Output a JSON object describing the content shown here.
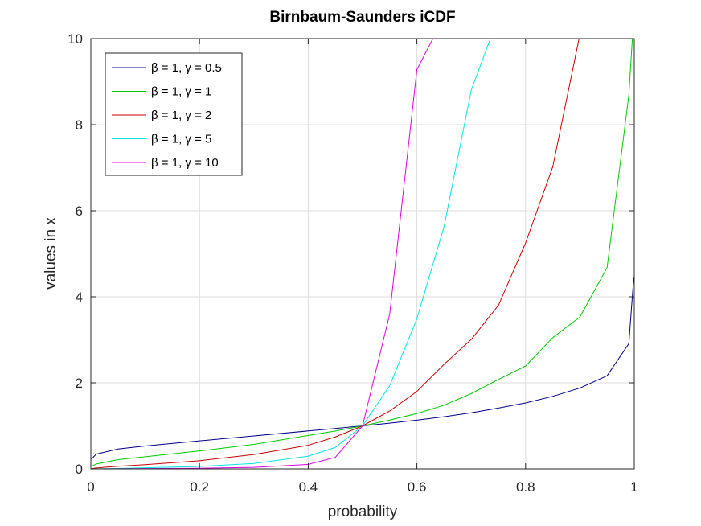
{
  "chart_data": {
    "type": "line",
    "title": "Birnbaum-Saunders iCDF",
    "xlabel": "probability",
    "ylabel": "values in x",
    "xlim": [
      0,
      1
    ],
    "ylim": [
      0,
      10
    ],
    "xticks": [
      0,
      0.2,
      0.4,
      0.6,
      0.8,
      1
    ],
    "yticks": [
      0,
      2,
      4,
      6,
      8,
      10
    ],
    "xtick_labels": [
      "0",
      "0.2",
      "0.4",
      "0.6",
      "0.8",
      "1"
    ],
    "ytick_labels": [
      "0",
      "2",
      "4",
      "6",
      "8",
      "10"
    ],
    "grid": true,
    "legend_position": "top-left",
    "x": [
      0.001,
      0.01,
      0.05,
      0.1,
      0.2,
      0.3,
      0.4,
      0.45,
      0.5,
      0.55,
      0.6,
      0.65,
      0.7,
      0.75,
      0.8,
      0.85,
      0.9,
      0.95,
      0.99,
      0.999
    ],
    "series": [
      {
        "name": "β = 1, γ = 0.5",
        "color": "#00008b",
        "values": [
          0.225,
          0.344,
          0.462,
          0.532,
          0.652,
          0.767,
          0.882,
          0.94,
          1.0,
          1.064,
          1.134,
          1.213,
          1.304,
          1.413,
          1.533,
          1.686,
          1.88,
          2.165,
          2.91,
          4.44
        ]
      },
      {
        "name": "β = 1, γ = 1",
        "color": "#00cc00",
        "values": [
          0.057,
          0.115,
          0.214,
          0.282,
          0.418,
          0.57,
          0.777,
          0.88,
          1.0,
          1.136,
          1.287,
          1.48,
          1.75,
          2.079,
          2.39,
          3.05,
          3.53,
          4.68,
          8.69,
          10.5
        ]
      },
      {
        "name": "β = 1, γ = 2",
        "color": "#cc0000",
        "values": [
          0.005,
          0.022,
          0.06,
          0.099,
          0.19,
          0.333,
          0.55,
          0.743,
          1.0,
          1.346,
          1.8,
          2.43,
          3.009,
          3.8,
          5.25,
          7.02,
          10.098,
          10.5,
          10.5,
          10.5
        ]
      },
      {
        "name": "β = 1, γ = 5",
        "color": "#00e5e5",
        "values": [
          0.0003,
          0.0014,
          0.01,
          0.025,
          0.057,
          0.126,
          0.296,
          0.5,
          1.0,
          1.933,
          3.49,
          5.63,
          8.8,
          10.5,
          10.5,
          10.5,
          10.5,
          10.5,
          10.5,
          10.5
        ]
      },
      {
        "name": "β = 1, γ = 10",
        "color": "#e100e1",
        "values": [
          5e-05,
          0.0003,
          0.0025,
          0.006,
          0.015,
          0.035,
          0.105,
          0.27,
          1.0,
          3.6,
          9.28,
          10.5,
          10.5,
          10.5,
          10.5,
          10.5,
          10.5,
          10.5,
          10.5,
          10.5
        ]
      }
    ]
  }
}
